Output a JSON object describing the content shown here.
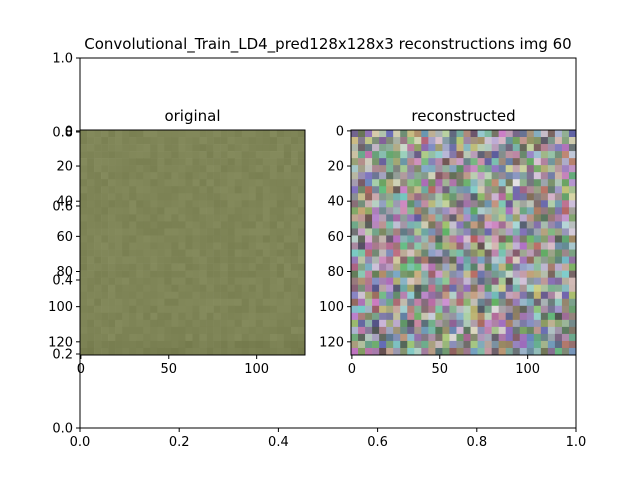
{
  "figure": {
    "title": "Convolutional_Train_LD4_pred128x128x3 reconstructions img 60"
  },
  "chart_data": [
    {
      "type": "scatter",
      "role": "background-axes",
      "title": "",
      "xlabel": "",
      "ylabel": "",
      "xlim": [
        0.0,
        1.0
      ],
      "ylim": [
        0.0,
        1.0
      ],
      "xticks": [
        0.0,
        0.2,
        0.4,
        0.6,
        0.8,
        1.0
      ],
      "xtick_labels": [
        "0.0",
        "0.2",
        "0.4",
        "0.6",
        "0.8",
        "1.0"
      ],
      "yticks": [
        0.0,
        0.2,
        0.4,
        0.6,
        0.8,
        1.0
      ],
      "ytick_labels": [
        "0.0",
        "0.2",
        "0.4",
        "0.6",
        "0.8",
        "1.0"
      ],
      "grid": false,
      "series": []
    },
    {
      "type": "heatmap",
      "title": "original",
      "xlabel": "",
      "ylabel": "",
      "xlim": [
        0,
        127
      ],
      "ylim": [
        127,
        0
      ],
      "xticks": [
        0,
        50,
        100
      ],
      "xtick_labels": [
        "0",
        "50",
        "100"
      ],
      "yticks": [
        0,
        20,
        40,
        60,
        80,
        100,
        120
      ],
      "ytick_labels": [
        "0",
        "20",
        "40",
        "60",
        "80",
        "100",
        "120"
      ],
      "image": {
        "width": 128,
        "height": 128,
        "channels": 3,
        "dominant_color": "#7f8557",
        "noise": 0.04
      }
    },
    {
      "type": "heatmap",
      "title": "reconstructed",
      "xlabel": "",
      "ylabel": "",
      "xlim": [
        0,
        127
      ],
      "ylim": [
        127,
        0
      ],
      "xticks": [
        0,
        50,
        100
      ],
      "xtick_labels": [
        "0",
        "50",
        "100"
      ],
      "yticks": [
        0,
        20,
        40,
        60,
        80,
        100,
        120
      ],
      "ytick_labels": [
        "0",
        "20",
        "40",
        "60",
        "80",
        "100",
        "120"
      ],
      "image": {
        "width": 128,
        "height": 128,
        "channels": 3,
        "dominant_color": "#8a8f8f",
        "noise": 0.55
      }
    }
  ]
}
